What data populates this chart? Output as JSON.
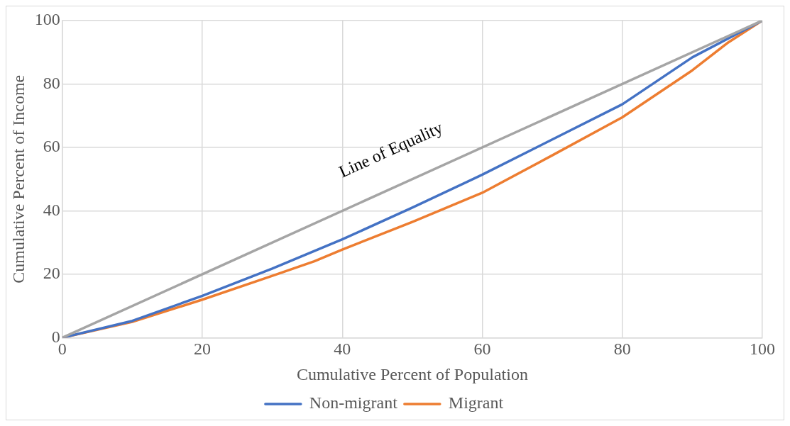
{
  "chart_data": {
    "type": "line",
    "xlabel": "Cumulative Percent of Population",
    "ylabel": "Cumulative Percent of Income",
    "xlim": [
      0,
      100
    ],
    "ylim": [
      0,
      100
    ],
    "xticks": [
      0,
      20,
      40,
      60,
      80,
      100
    ],
    "yticks": [
      0,
      20,
      40,
      60,
      80,
      100
    ],
    "grid": true,
    "legend": "bottom",
    "marker": "none",
    "line_style": "solid",
    "annotations": [
      "Line of Equality"
    ],
    "series": [
      {
        "color": "#a5a5a5",
        "x": [
          0,
          100
        ],
        "values": [
          0,
          100
        ]
      },
      {
        "name": "Non-migrant",
        "color": "#4472c4",
        "x": [
          0,
          10,
          20,
          30,
          40,
          50,
          60,
          70,
          80,
          90,
          100
        ],
        "values": [
          0,
          5.3,
          13.2,
          21.8,
          31,
          41,
          51.4,
          62.5,
          73.6,
          88.4,
          100
        ]
      },
      {
        "name": "Migrant",
        "color": "#ed7d31",
        "x": [
          0,
          10,
          20,
          30,
          36,
          40,
          50,
          60,
          70,
          80,
          90,
          95,
          100
        ],
        "values": [
          0,
          5,
          12,
          19.5,
          24.1,
          27.8,
          36.5,
          45.7,
          57.5,
          69.5,
          84.3,
          92.9,
          100
        ]
      }
    ]
  }
}
